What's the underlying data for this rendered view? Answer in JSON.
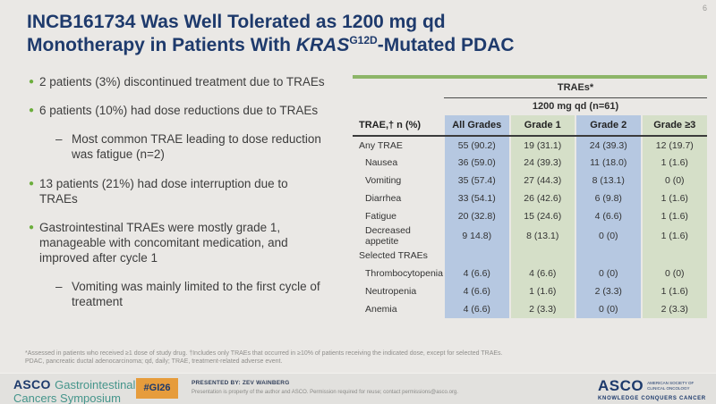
{
  "colors": {
    "slide_bg": "#eae8e5",
    "title_navy": "#1e3a6c",
    "bullet_green": "#6cae3d",
    "table_blue": "#b6c8e1",
    "table_green": "#d5dfc8",
    "table_top_bar_green": "#8db568",
    "badge_orange": "#e69c3c",
    "symposium_teal": "#45958b"
  },
  "icons": {
    "bullet_dot": "●",
    "sub_dash": "–"
  },
  "slide": {
    "number": "6",
    "title_line1": "INCB161734 Was Well Tolerated as 1200 mg qd",
    "title_line2_prefix": "Monotherapy in Patients With ",
    "title_gene": "KRAS",
    "title_superscript": "G12D",
    "title_line2_suffix": "-Mutated PDAC"
  },
  "bullets": [
    {
      "type": "bullet",
      "text": "2 patients (3%) discontinued treatment due to TRAEs"
    },
    {
      "type": "bullet",
      "text": "6 patients (10%) had dose reductions due to TRAEs"
    },
    {
      "type": "sub",
      "text": "Most common TRAE leading to dose reduction was fatigue (n=2)"
    },
    {
      "type": "bullet",
      "text": "13 patients (21%) had dose interruption due to TRAEs"
    },
    {
      "type": "bullet",
      "text": "Gastrointestinal TRAEs were mostly grade 1, manageable with concomitant medication, and improved after cycle 1"
    },
    {
      "type": "sub",
      "text": "Vomiting was mainly limited to the first cycle of treatment"
    }
  ],
  "table": {
    "header_group": "TRAEs*",
    "subheader": "1200 mg qd (n=61)",
    "label_header": "TRAE,† n (%)",
    "col_headers": [
      "All Grades",
      "Grade 1",
      "Grade 2",
      "Grade ≥3"
    ],
    "rows": [
      {
        "label": "Any TRAE",
        "indent": false,
        "values": [
          "55 (90.2)",
          "19 (31.1)",
          "24 (39.3)",
          "12 (19.7)"
        ]
      },
      {
        "label": "Nausea",
        "indent": true,
        "values": [
          "36 (59.0)",
          "24 (39.3)",
          "11 (18.0)",
          "1 (1.6)"
        ]
      },
      {
        "label": "Vomiting",
        "indent": true,
        "values": [
          "35 (57.4)",
          "27 (44.3)",
          "8 (13.1)",
          "0 (0)"
        ]
      },
      {
        "label": "Diarrhea",
        "indent": true,
        "values": [
          "33 (54.1)",
          "26 (42.6)",
          "6 (9.8)",
          "1 (1.6)"
        ]
      },
      {
        "label": "Fatigue",
        "indent": true,
        "values": [
          "20 (32.8)",
          "15 (24.6)",
          "4 (6.6)",
          "1 (1.6)"
        ]
      },
      {
        "label": "Decreased appetite",
        "indent": true,
        "values": [
          "9 14.8)",
          "8 (13.1)",
          "0 (0)",
          "1 (1.6)"
        ]
      },
      {
        "label": "Selected TRAEs",
        "indent": false,
        "values": [
          "",
          "",
          "",
          ""
        ]
      },
      {
        "label": "Thrombocytopenia",
        "indent": true,
        "values": [
          "4 (6.6)",
          "4 (6.6)",
          "0 (0)",
          "0 (0)"
        ]
      },
      {
        "label": "Neutropenia",
        "indent": true,
        "values": [
          "4 (6.6)",
          "1 (1.6)",
          "2 (3.3)",
          "1 (1.6)"
        ]
      },
      {
        "label": "Anemia",
        "indent": true,
        "values": [
          "4 (6.6)",
          "2 (3.3)",
          "0 (0)",
          "2 (3.3)"
        ]
      }
    ]
  },
  "footnotes": {
    "line1": "*Assessed in patients who received ≥1 dose of study drug. †Includes only TRAEs that occurred in ≥10% of patients receiving the indicated dose, except for selected TRAEs.",
    "line2": "PDAC, pancreatic ductal adenocarcinoma; qd, daily; TRAE, treatment-related adverse event."
  },
  "footer": {
    "symposium_brand": "ASCO",
    "symposium_line1": "Gastrointestinal",
    "symposium_line2": "Cancers Symposium",
    "hashtag": "#GI26",
    "presented_by": "PRESENTED BY: ZEV WAINBERG",
    "permission": "Presentation is property of the author and ASCO. Permission required for reuse; contact permissions@asco.org.",
    "asco_logo": "ASCO",
    "asco_sub1": "AMERICAN SOCIETY OF",
    "asco_sub2": "CLINICAL ONCOLOGY",
    "asco_tagline": "KNOWLEDGE CONQUERS CANCER"
  }
}
